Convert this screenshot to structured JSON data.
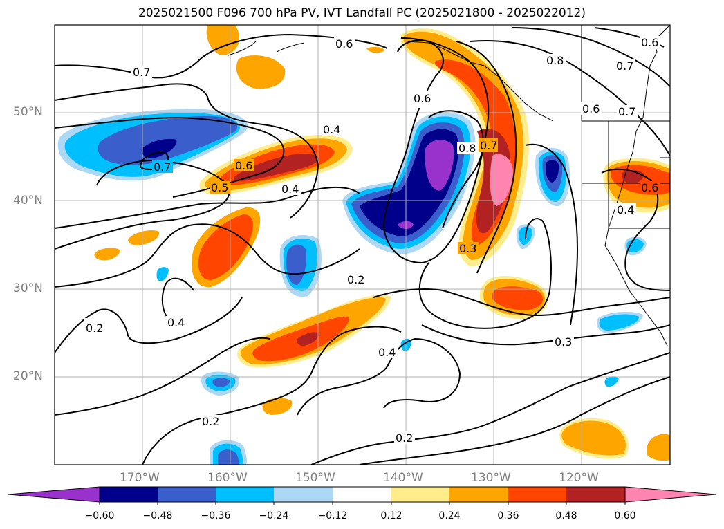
{
  "title": "2025021500 F096 700 hPa PV, IVT Landfall PC (2025021800 - 2025022012)",
  "map": {
    "lat_labels": [
      "50°N",
      "40°N",
      "30°N",
      "20°N"
    ],
    "lon_labels": [
      "170°W",
      "160°W",
      "150°W",
      "140°W",
      "130°W",
      "120°W"
    ],
    "contour_labels": [
      "0.6",
      "0.7",
      "0.8",
      "0.6",
      "0.7",
      "0.6",
      "0.7",
      "0.6",
      "0.8",
      "0.7",
      "0.4",
      "0.6",
      "0.5",
      "0.4",
      "0.7",
      "0.4",
      "0.3",
      "0.2",
      "0.4",
      "0.2",
      "0.4",
      "0.3",
      "0.2",
      "0.2",
      "0.6"
    ]
  },
  "colorbar": {
    "labels": [
      "−0.60",
      "−0.48",
      "−0.36",
      "−0.24",
      "−0.12",
      "0.12",
      "0.24",
      "0.36",
      "0.48",
      "0.60"
    ],
    "colors": [
      "#9932cc",
      "#00008b",
      "#3a5fcd",
      "#00bfff",
      "#add8f5",
      "#ffffff",
      "#ffec8b",
      "#ffa500",
      "#ff4500",
      "#b22222",
      "#ff85b0"
    ]
  }
}
